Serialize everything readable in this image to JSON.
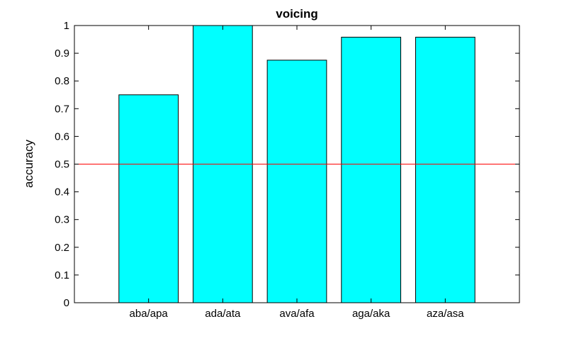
{
  "chart_data": {
    "type": "bar",
    "title": "voicing",
    "xlabel": "",
    "ylabel": "accuracy",
    "categories": [
      "aba/apa",
      "ada/ata",
      "ava/afa",
      "aga/aka",
      "aza/asa"
    ],
    "values": [
      0.75,
      1.0,
      0.875,
      0.958,
      0.958
    ],
    "ylim": [
      0,
      1
    ],
    "yticks": [
      "0",
      "0.1",
      "0.2",
      "0.3",
      "0.4",
      "0.5",
      "0.6",
      "0.7",
      "0.8",
      "0.9",
      "1"
    ],
    "reference_line": 0.5,
    "bar_color": "#00ffff",
    "reference_line_color": "#ff0000",
    "grid": false
  }
}
